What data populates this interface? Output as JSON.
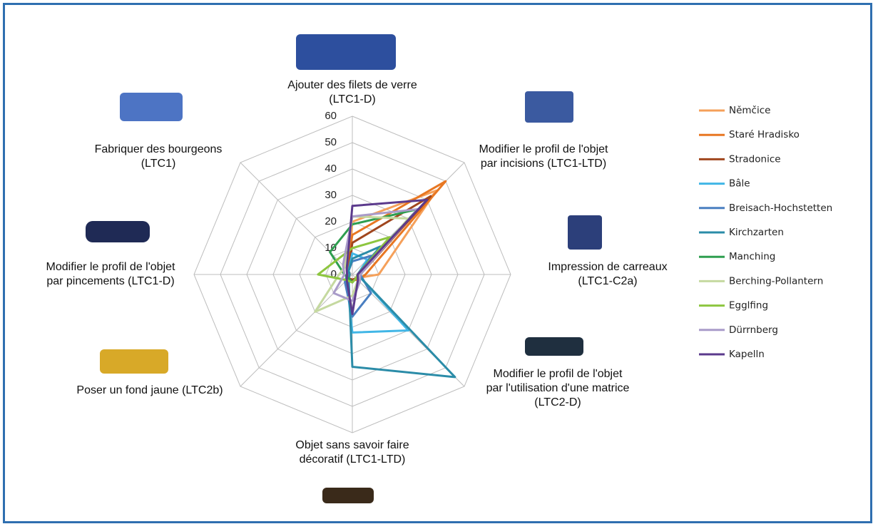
{
  "chart_data": {
    "type": "radar",
    "categories": [
      "Ajouter des filets de verre\n(LTC1-D)",
      "Modifier le profil de l'objet\npar incisions (LTC1-LTD)",
      "Impression de carreaux\n(LTC1-C2a)",
      "Modifier le profil de l'objet\npar l'utilisation d'une matrice\n(LTC2-D)",
      "Objet sans savoir faire\ndécoratif (LTC1-LTD)",
      "Poser un fond jaune (LTC2b)",
      "Modifier le profil de l'objet\npar pincements (LTC1-D)",
      "Fabriquer des bourgeons\n(LTC1)"
    ],
    "rlim": [
      0,
      60
    ],
    "rticks": [
      0,
      10,
      20,
      30,
      40,
      50,
      60
    ],
    "grid": true,
    "series": [
      {
        "name": "Němčice",
        "color": "#f5a05a",
        "values": [
          20,
          45,
          10,
          2,
          2,
          2,
          2,
          2
        ]
      },
      {
        "name": "Staré Hradisko",
        "color": "#e87722",
        "values": [
          15,
          50,
          5,
          3,
          2,
          2,
          2,
          3
        ]
      },
      {
        "name": "Stradonice",
        "color": "#a0461e",
        "values": [
          12,
          42,
          3,
          2,
          2,
          2,
          1,
          2
        ]
      },
      {
        "name": "Bâle",
        "color": "#41b6e6",
        "values": [
          8,
          8,
          2,
          30,
          22,
          3,
          2,
          2
        ]
      },
      {
        "name": "Breisach-Hochstetten",
        "color": "#4a7fc1",
        "values": [
          5,
          10,
          3,
          10,
          16,
          4,
          2,
          2
        ]
      },
      {
        "name": "Kirchzarten",
        "color": "#2b8ca8",
        "values": [
          6,
          15,
          2,
          55,
          35,
          2,
          1,
          2
        ]
      },
      {
        "name": "Manching",
        "color": "#2e9e4f",
        "values": [
          19,
          35,
          2,
          2,
          3,
          2,
          3,
          12
        ]
      },
      {
        "name": "Berching-Pollantern",
        "color": "#c5d9a0",
        "values": [
          22,
          30,
          3,
          3,
          8,
          20,
          5,
          4
        ]
      },
      {
        "name": "Egglfing",
        "color": "#8dc63f",
        "values": [
          10,
          20,
          2,
          2,
          3,
          3,
          13,
          8
        ]
      },
      {
        "name": "Dürrnberg",
        "color": "#a99bc9",
        "values": [
          22,
          35,
          3,
          4,
          10,
          10,
          3,
          5
        ]
      },
      {
        "name": "Kapelln",
        "color": "#5b3a8c",
        "values": [
          26,
          40,
          2,
          3,
          15,
          3,
          2,
          3
        ]
      }
    ]
  }
}
